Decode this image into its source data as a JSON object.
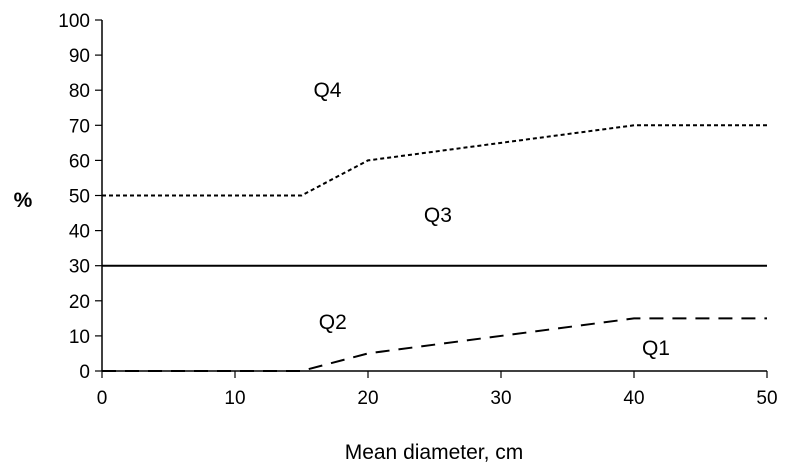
{
  "chart_data": {
    "type": "line",
    "xlabel": "Mean diameter, cm",
    "ylabel": "%",
    "xlim": [
      0,
      50
    ],
    "ylim": [
      0,
      100
    ],
    "xticks": [
      0,
      10,
      20,
      30,
      40,
      50
    ],
    "yticks": [
      0,
      10,
      20,
      30,
      40,
      50,
      60,
      70,
      80,
      90,
      100
    ],
    "grid": false,
    "legend": "none",
    "series": [
      {
        "style": "dashed",
        "x": [
          0,
          15,
          20,
          40,
          50
        ],
        "y": [
          0,
          0,
          5,
          15,
          15
        ]
      },
      {
        "style": "solid",
        "x": [
          0,
          50
        ],
        "y": [
          30,
          30
        ]
      },
      {
        "style": "dotted",
        "x": [
          0,
          15,
          20,
          40,
          50
        ],
        "y": [
          50,
          50,
          60,
          70,
          70
        ]
      }
    ],
    "annotations": [
      {
        "text": "Q1",
        "x": 40.6,
        "y": 6.5
      },
      {
        "text": "Q2",
        "x": 16.3,
        "y": 14
      },
      {
        "text": "Q3",
        "x": 24.2,
        "y": 44.5
      },
      {
        "text": "Q4",
        "x": 15.9,
        "y": 80
      }
    ],
    "colors": {
      "line": "#000000",
      "background": "#ffffff"
    }
  }
}
